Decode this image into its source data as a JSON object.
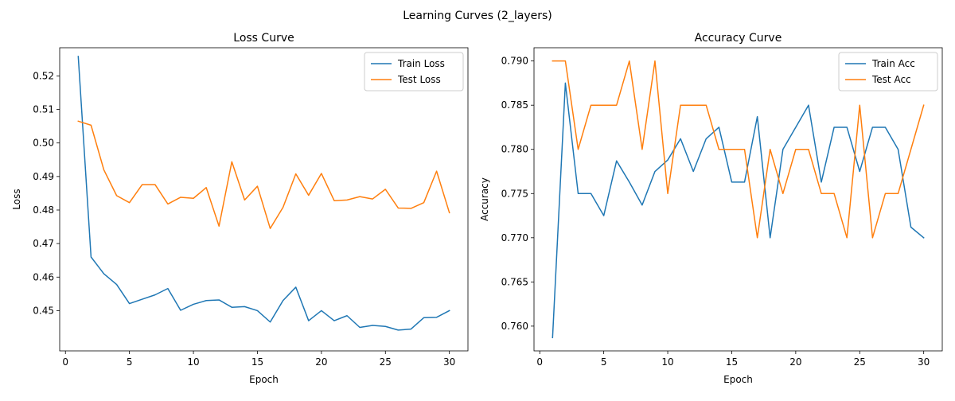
{
  "figure": {
    "suptitle": "Learning Curves (2_layers)"
  },
  "chart_data": [
    {
      "type": "line",
      "title": "Loss Curve",
      "xlabel": "Epoch",
      "ylabel": "Loss",
      "xlim": [
        -0.45,
        31.45
      ],
      "ylim": [
        0.438,
        0.5284
      ],
      "xticks": [
        0,
        5,
        10,
        15,
        20,
        25,
        30
      ],
      "yticks": [
        0.45,
        0.46,
        0.47,
        0.48,
        0.49,
        0.5,
        0.51,
        0.52
      ],
      "ytick_labels": [
        "0.45",
        "0.46",
        "0.47",
        "0.48",
        "0.49",
        "0.50",
        "0.51",
        "0.52"
      ],
      "grid": false,
      "legend": "top-right",
      "x": [
        1,
        2,
        3,
        4,
        5,
        6,
        7,
        8,
        9,
        10,
        11,
        12,
        13,
        14,
        15,
        16,
        17,
        18,
        19,
        20,
        21,
        22,
        23,
        24,
        25,
        26,
        27,
        28,
        29,
        30
      ],
      "series": [
        {
          "name": "Train Loss",
          "color": "#1f77b4",
          "values": [
            0.5258,
            0.466,
            0.461,
            0.4578,
            0.4521,
            0.4534,
            0.4547,
            0.4566,
            0.4501,
            0.4519,
            0.453,
            0.4532,
            0.451,
            0.4512,
            0.45,
            0.4466,
            0.453,
            0.457,
            0.447,
            0.45,
            0.447,
            0.4485,
            0.445,
            0.4456,
            0.4453,
            0.4442,
            0.4445,
            0.4479,
            0.448,
            0.45
          ]
        },
        {
          "name": "Test Loss",
          "color": "#ff7f0e",
          "values": [
            0.5065,
            0.5053,
            0.492,
            0.4843,
            0.4822,
            0.4876,
            0.4876,
            0.4818,
            0.4838,
            0.4835,
            0.4867,
            0.4752,
            0.4944,
            0.483,
            0.4871,
            0.4745,
            0.4808,
            0.4908,
            0.4844,
            0.4909,
            0.4828,
            0.483,
            0.484,
            0.4833,
            0.4862,
            0.4806,
            0.4805,
            0.4822,
            0.4916,
            0.4792
          ]
        }
      ]
    },
    {
      "type": "line",
      "title": "Accuracy Curve",
      "xlabel": "Epoch",
      "ylabel": "Accuracy",
      "xlim": [
        -0.45,
        31.45
      ],
      "ylim": [
        0.7572,
        0.7915
      ],
      "xticks": [
        0,
        5,
        10,
        15,
        20,
        25,
        30
      ],
      "yticks": [
        0.76,
        0.765,
        0.77,
        0.775,
        0.78,
        0.785,
        0.79
      ],
      "ytick_labels": [
        "0.760",
        "0.765",
        "0.770",
        "0.775",
        "0.780",
        "0.785",
        "0.790"
      ],
      "grid": false,
      "legend": "top-right",
      "x": [
        1,
        2,
        3,
        4,
        5,
        6,
        7,
        8,
        9,
        10,
        11,
        12,
        13,
        14,
        15,
        16,
        17,
        18,
        19,
        20,
        21,
        22,
        23,
        24,
        25,
        26,
        27,
        28,
        29,
        30
      ],
      "series": [
        {
          "name": "Train Acc",
          "color": "#1f77b4",
          "values": [
            0.7587,
            0.7875,
            0.775,
            0.775,
            0.7725,
            0.7787,
            0.7763,
            0.7737,
            0.7775,
            0.7788,
            0.7812,
            0.7775,
            0.7812,
            0.7825,
            0.7763,
            0.7763,
            0.7837,
            0.77,
            0.78,
            0.7825,
            0.785,
            0.7763,
            0.7825,
            0.7825,
            0.7775,
            0.7825,
            0.7825,
            0.78,
            0.7712,
            0.77
          ]
        },
        {
          "name": "Test Acc",
          "color": "#ff7f0e",
          "values": [
            0.79,
            0.79,
            0.78,
            0.785,
            0.785,
            0.785,
            0.79,
            0.78,
            0.79,
            0.775,
            0.785,
            0.785,
            0.785,
            0.78,
            0.78,
            0.78,
            0.77,
            0.78,
            0.775,
            0.78,
            0.78,
            0.775,
            0.775,
            0.77,
            0.785,
            0.77,
            0.775,
            0.775,
            0.78,
            0.785
          ]
        }
      ]
    }
  ]
}
